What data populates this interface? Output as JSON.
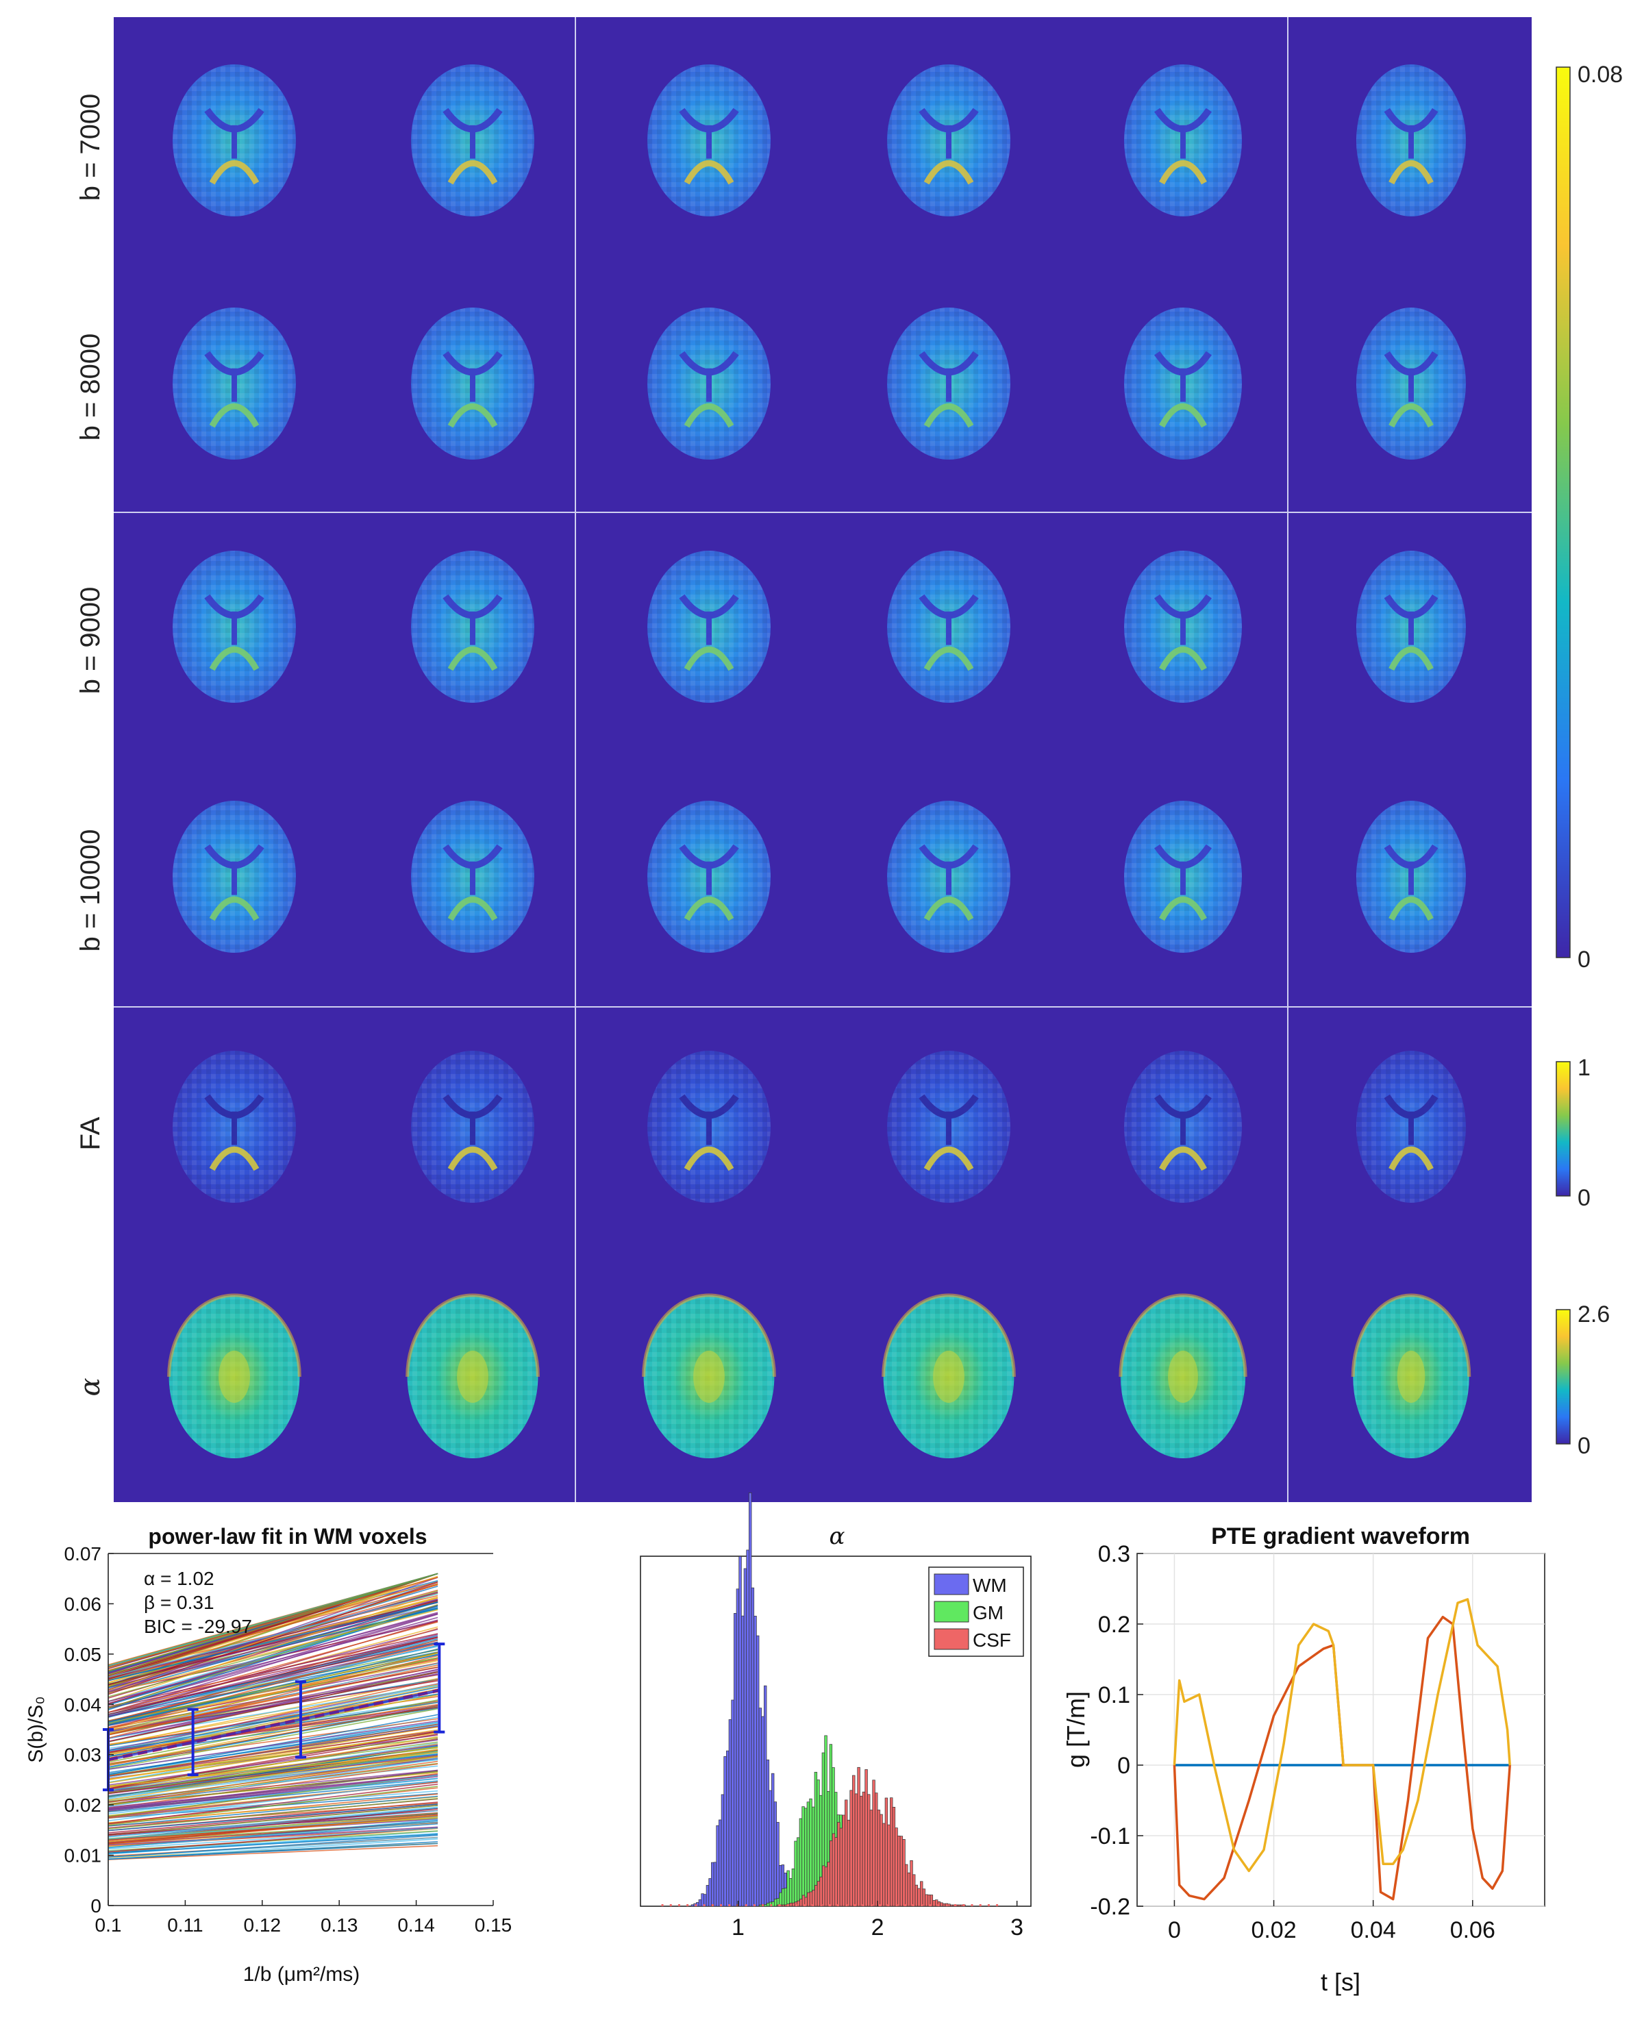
{
  "row_labels": [
    "b = 7000",
    "b = 8000",
    "b = 9000",
    "b = 10000",
    "FA",
    "α"
  ],
  "colorbars": [
    {
      "max_label": "0.08",
      "min_label": "0",
      "colors": [
        "#3e26a8",
        "#2b77f4",
        "#13b8c6",
        "#86c94c",
        "#f9c532",
        "#f9fb0e"
      ]
    },
    {
      "max_label": "1",
      "min_label": "0",
      "colors": [
        "#3e26a8",
        "#2b77f4",
        "#13b8c6",
        "#86c94c",
        "#f9c532",
        "#f9fb0e"
      ]
    },
    {
      "max_label": "2.6",
      "min_label": "0",
      "colors": [
        "#3e26a8",
        "#2b77f4",
        "#13b8c6",
        "#86c94c",
        "#f9c532",
        "#f9fb0e"
      ]
    }
  ],
  "panels": {
    "fit": {
      "title": "power-law fit in WM voxels",
      "annotations": [
        "α = 1.02",
        "β = 0.31",
        "BIC = -29.97"
      ],
      "xlabel": "1/b (μm²/ms)",
      "ylabel": "S(b)/S₀"
    },
    "hist": {
      "title": "α",
      "legend": [
        "WM",
        "GM",
        "CSF"
      ]
    },
    "wave": {
      "title": "PTE gradient waveform",
      "xlabel": "t [s]",
      "ylabel": "g [T/m]"
    }
  },
  "chart_data": [
    {
      "type": "line",
      "title": "power-law fit in WM voxels",
      "xlabel": "1/b (μm²/ms)",
      "ylabel": "S(b)/S₀",
      "xlim": [
        0.1,
        0.15
      ],
      "ylim": [
        0,
        0.07
      ],
      "xticks": [
        "0.1",
        "0.11",
        "0.12",
        "0.13",
        "0.14",
        "0.15"
      ],
      "yticks": [
        "0",
        "0.01",
        "0.02",
        "0.03",
        "0.04",
        "0.05",
        "0.06",
        "0.07"
      ],
      "series": [
        {
          "name": "",
          "x": [
            0.1,
            0.111,
            0.125,
            0.143
          ],
          "y": [
            0.029,
            0.0325,
            0.037,
            0.0428
          ],
          "err_low": [
            0.023,
            0.026,
            0.0295,
            0.0345
          ],
          "err_high": [
            0.035,
            0.039,
            0.0445,
            0.052
          ]
        }
      ],
      "voxel_curves": {
        "y_start_range": [
          0.009,
          0.048
        ],
        "y_end_range": [
          0.013,
          0.066
        ],
        "count": 320
      }
    },
    {
      "type": "bar",
      "title": "α",
      "xlim": [
        0.3,
        3.1
      ],
      "xticks": [
        "1",
        "2",
        "3"
      ],
      "legend": [
        "WM",
        "GM",
        "CSF"
      ],
      "series": [
        {
          "name": "WM",
          "color": "#6b6bf0",
          "center": 1.08,
          "width": 0.13,
          "peak": 1.0
        },
        {
          "name": "GM",
          "color": "#60e860",
          "center": 1.6,
          "width": 0.14,
          "peak": 0.43
        },
        {
          "name": "CSF",
          "color": "#ee6666",
          "center": 1.92,
          "width": 0.2,
          "peak": 0.38
        }
      ]
    },
    {
      "type": "line",
      "title": "PTE gradient waveform",
      "xlabel": "t [s]",
      "ylabel": "g [T/m]",
      "xlim": [
        -0.0075,
        0.0745
      ],
      "ylim": [
        -0.2,
        0.3
      ],
      "xticks": [
        "0",
        "0.02",
        "0.04",
        "0.06"
      ],
      "yticks": [
        "-0.2",
        "-0.1",
        "0",
        "0.1",
        "0.2",
        "0.3"
      ],
      "series": [
        {
          "name": "",
          "color": "#0072bd",
          "x": [
            0,
            0.0675
          ],
          "y": [
            0,
            0
          ]
        },
        {
          "name": "",
          "color": "#d95319",
          "x": [
            0,
            0.001,
            0.003,
            0.006,
            0.01,
            0.015,
            0.02,
            0.025,
            0.03,
            0.032,
            0.034,
            0.0338,
            0.039,
            0.04,
            0.0415,
            0.044,
            0.047,
            0.051,
            0.054,
            0.056,
            0.058,
            0.06,
            0.062,
            0.064,
            0.066,
            0.0675
          ],
          "y": [
            0,
            -0.17,
            -0.185,
            -0.19,
            -0.16,
            -0.05,
            0.07,
            0.14,
            0.165,
            0.17,
            0.0,
            0,
            0,
            0,
            -0.18,
            -0.19,
            -0.05,
            0.18,
            0.21,
            0.2,
            0.05,
            -0.09,
            -0.16,
            -0.175,
            -0.15,
            0
          ]
        },
        {
          "name": "",
          "color": "#edb120",
          "x": [
            0,
            0.001,
            0.002,
            0.005,
            0.008,
            0.012,
            0.015,
            0.018,
            0.022,
            0.025,
            0.028,
            0.031,
            0.032,
            0.034,
            0.038,
            0.04,
            0.042,
            0.044,
            0.046,
            0.049,
            0.053,
            0.057,
            0.059,
            0.061,
            0.065,
            0.067,
            0.0675
          ],
          "y": [
            0,
            0.12,
            0.09,
            0.1,
            0.0,
            -0.12,
            -0.15,
            -0.12,
            0.03,
            0.17,
            0.2,
            0.19,
            0.17,
            0,
            0,
            0,
            -0.14,
            -0.14,
            -0.12,
            -0.05,
            0.1,
            0.23,
            0.235,
            0.17,
            0.14,
            0.05,
            0
          ]
        }
      ]
    }
  ]
}
